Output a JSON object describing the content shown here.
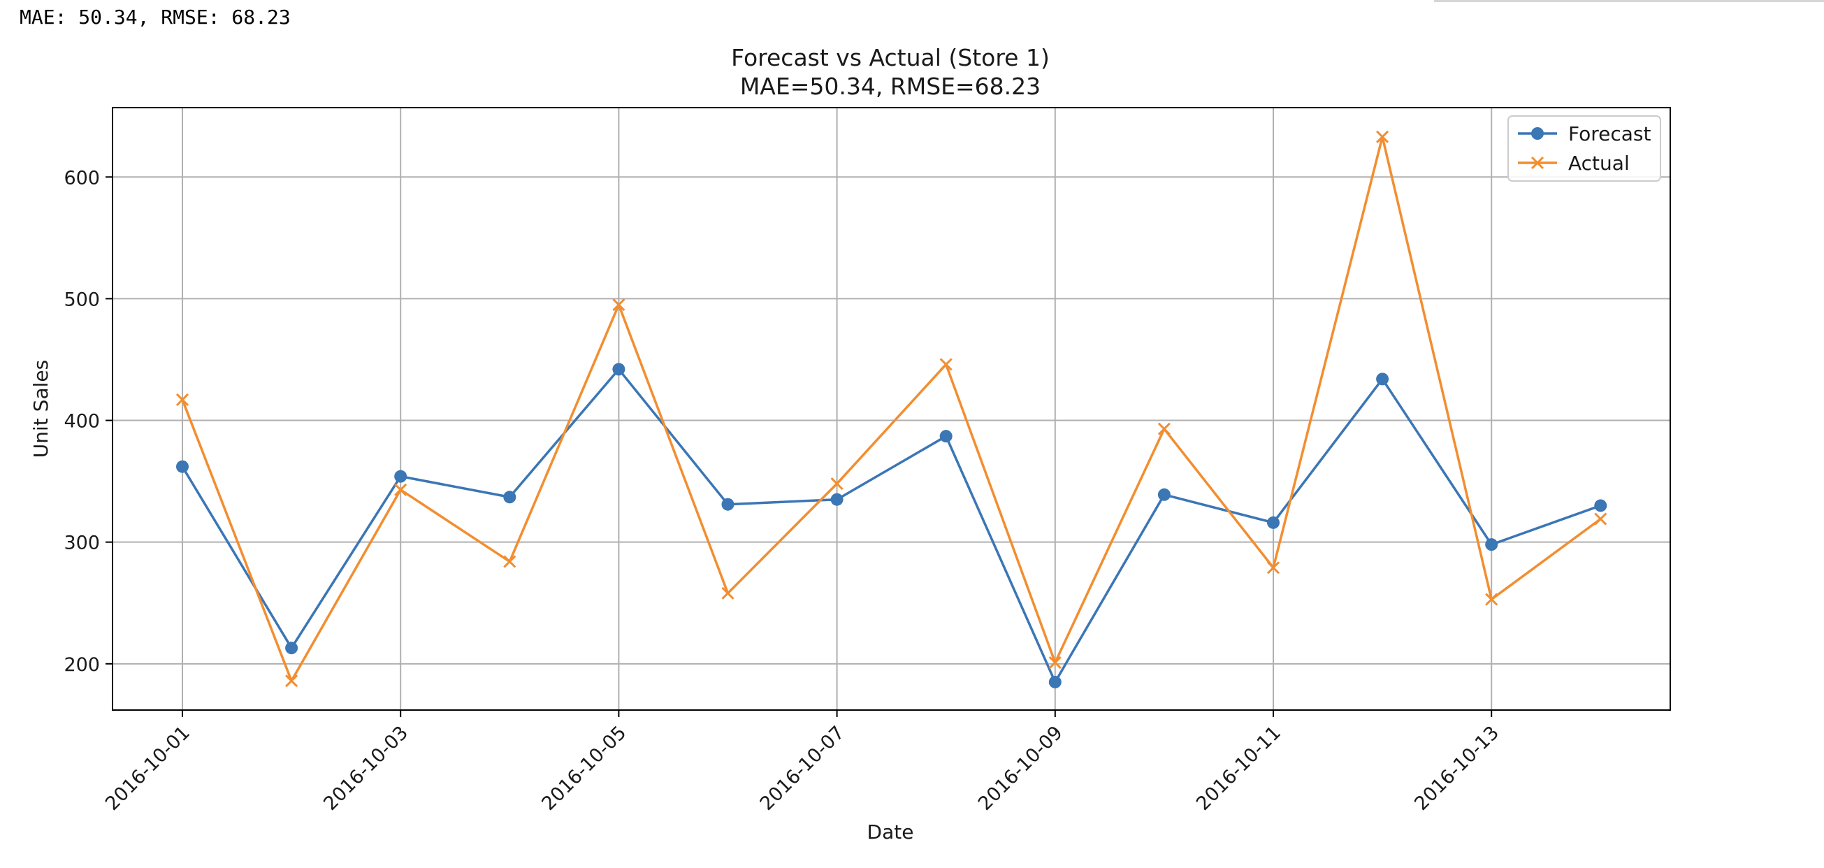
{
  "output": {
    "text": "MAE: 50.34, RMSE: 68.23"
  },
  "colors": {
    "forecast": "#3b76b5",
    "actual": "#f28e30",
    "grid": "#b0b0b0",
    "axes": "#000000"
  },
  "chart_data": {
    "type": "line",
    "title": "Forecast vs Actual (Store 1)",
    "subtitle": "MAE=50.34, RMSE=68.23",
    "xlabel": "Date",
    "ylabel": "Unit Sales",
    "x": [
      "2016-10-01",
      "2016-10-02",
      "2016-10-03",
      "2016-10-04",
      "2016-10-05",
      "2016-10-06",
      "2016-10-07",
      "2016-10-08",
      "2016-10-09",
      "2016-10-10",
      "2016-10-11",
      "2016-10-12",
      "2016-10-13",
      "2016-10-14"
    ],
    "xticks": [
      "2016-10-01",
      "2016-10-03",
      "2016-10-05",
      "2016-10-07",
      "2016-10-09",
      "2016-10-11",
      "2016-10-13"
    ],
    "yticks": [
      200,
      300,
      400,
      500,
      600
    ],
    "ylim": [
      162,
      657
    ],
    "grid": true,
    "legend_position": "top-right",
    "series": [
      {
        "name": "Forecast",
        "marker": "circle",
        "values": [
          362,
          213,
          354,
          337,
          442,
          331,
          335,
          387,
          185,
          339,
          316,
          434,
          298,
          330
        ]
      },
      {
        "name": "Actual",
        "marker": "x",
        "values": [
          417,
          186,
          343,
          284,
          495,
          258,
          348,
          446,
          201,
          393,
          279,
          633,
          253,
          319
        ]
      }
    ]
  }
}
